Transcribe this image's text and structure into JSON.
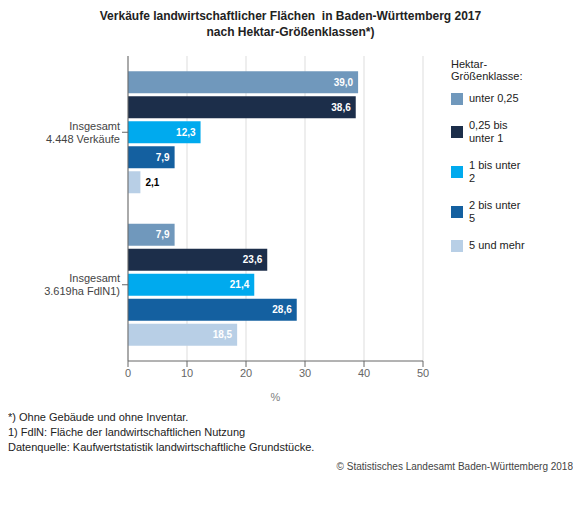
{
  "chart_data": {
    "type": "bar",
    "orientation": "horizontal",
    "title": "Verkäufe landwirtschaftlicher Flächen  in Baden-Württemberg 2017",
    "subtitle": "nach Hektar-Größenklassen*)",
    "categories": [
      "Insgesamt\n4.448 Verkäufe",
      "Insgesamt\n3.619ha FdlN1)"
    ],
    "series": [
      {
        "name": "unter 0,25",
        "color": "#7098bc",
        "values": [
          39.0,
          7.9
        ],
        "value_labels": [
          "39,0",
          "7,9"
        ]
      },
      {
        "name": "0,25 bis\nunter 1",
        "color": "#1c2e4a",
        "values": [
          38.6,
          23.6
        ],
        "value_labels": [
          "38,6",
          "23,6"
        ]
      },
      {
        "name": "1 bis unter\n2",
        "color": "#00aaee",
        "values": [
          12.3,
          21.4
        ],
        "value_labels": [
          "12,3",
          "21,4"
        ]
      },
      {
        "name": "2 bis unter\n5",
        "color": "#1460a0",
        "values": [
          7.9,
          28.6
        ],
        "value_labels": [
          "7,9",
          "28,6"
        ]
      },
      {
        "name": "5 und mehr",
        "color": "#b8cfe6",
        "values": [
          2.1,
          18.5
        ],
        "value_labels": [
          "2,1",
          "18,5"
        ]
      }
    ],
    "xlabel": "%",
    "xlim": [
      0,
      50
    ],
    "xticks": [
      0,
      10,
      20,
      30,
      40,
      50
    ],
    "grid": true,
    "data_labels": true,
    "legend": "right",
    "legend_title": "Hektar-\nGrößenklasse:",
    "annotations": [
      "*) Ohne Gebäude und ohne Inventar.",
      "1) FdlN: Fläche der landwirtschaftlichen Nutzung",
      "Datenquelle: Kaufwertstatistik landwirtschaftliche Grundstücke.",
      "© Statistisches Landesamt Baden-Württemberg 2018"
    ]
  }
}
